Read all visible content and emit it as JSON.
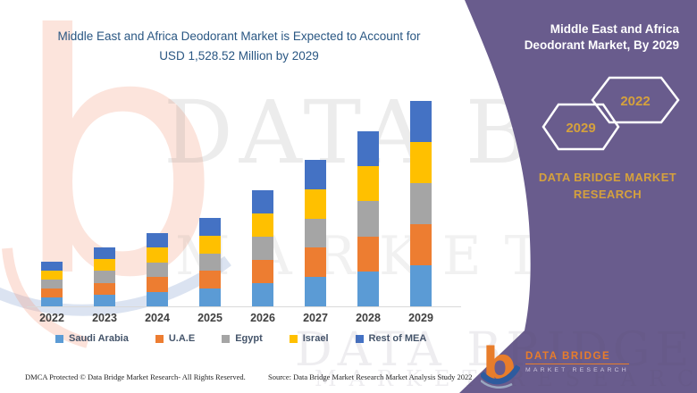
{
  "header": {
    "title_line1": "Middle East and Africa Deodorant Market is Expected to Account for",
    "title_line2": "USD 1,528.52 Million by 2029",
    "title_color": "#2A5783"
  },
  "side_panel": {
    "title_line1": "Middle East and Africa",
    "title_line2": "Deodorant Market, By 2029",
    "hexagon_back_label": "2029",
    "hexagon_front_label": "2022",
    "brand_line1": "DATA BRIDGE MARKET",
    "brand_line2": "RESEARCH",
    "panel_color": "#695C8D",
    "gold_color": "#D5A13D"
  },
  "watermark": {
    "letter": "b",
    "line1": "DATA BRIDGE",
    "line2": "MARKET RESEARCH",
    "line3": "DATA BRIDGE",
    "line4": "MARKET RESEARCH"
  },
  "logo": {
    "glyph": "b",
    "name": "DATA BRIDGE",
    "subtitle": "MARKET RESEARCH"
  },
  "footer": {
    "dmca": "DMCA Protected © Data Bridge Market Research- All Rights Reserved.",
    "source": "Source: Data Bridge Market Research Market Analysis Study 2022"
  },
  "chart_data": {
    "type": "bar",
    "stacked": true,
    "unit": "USD Million",
    "categories": [
      "2022",
      "2023",
      "2024",
      "2025",
      "2026",
      "2027",
      "2028",
      "2029"
    ],
    "series": [
      {
        "name": "Saudi Arabia",
        "color": "#5B9BD5",
        "values": [
          66.4,
          87.8,
          109.0,
          131.6,
          172.8,
          218.0,
          260.6,
          305.7
        ]
      },
      {
        "name": "U.A.E",
        "color": "#ED7D31",
        "values": [
          66.4,
          87.8,
          109.0,
          131.6,
          172.8,
          218.0,
          260.6,
          305.7
        ]
      },
      {
        "name": "Egypt",
        "color": "#A5A5A5",
        "values": [
          66.4,
          87.8,
          109.0,
          131.6,
          172.8,
          218.0,
          260.6,
          305.7
        ]
      },
      {
        "name": "Israel",
        "color": "#FFC000",
        "values": [
          66.4,
          87.8,
          109.0,
          131.6,
          172.8,
          218.0,
          260.6,
          305.7
        ]
      },
      {
        "name": "Rest of MEA",
        "color": "#4472C4",
        "values": [
          66.4,
          87.8,
          109.0,
          131.6,
          172.8,
          218.0,
          260.6,
          305.72
        ]
      }
    ],
    "totals": [
      332,
      439,
      545,
      658,
      864,
      1090,
      1303,
      1528.52
    ],
    "highlight_total_2029": "1,528.52",
    "legend_position": "bottom",
    "y_axis_visible": false,
    "gridlines": false
  }
}
